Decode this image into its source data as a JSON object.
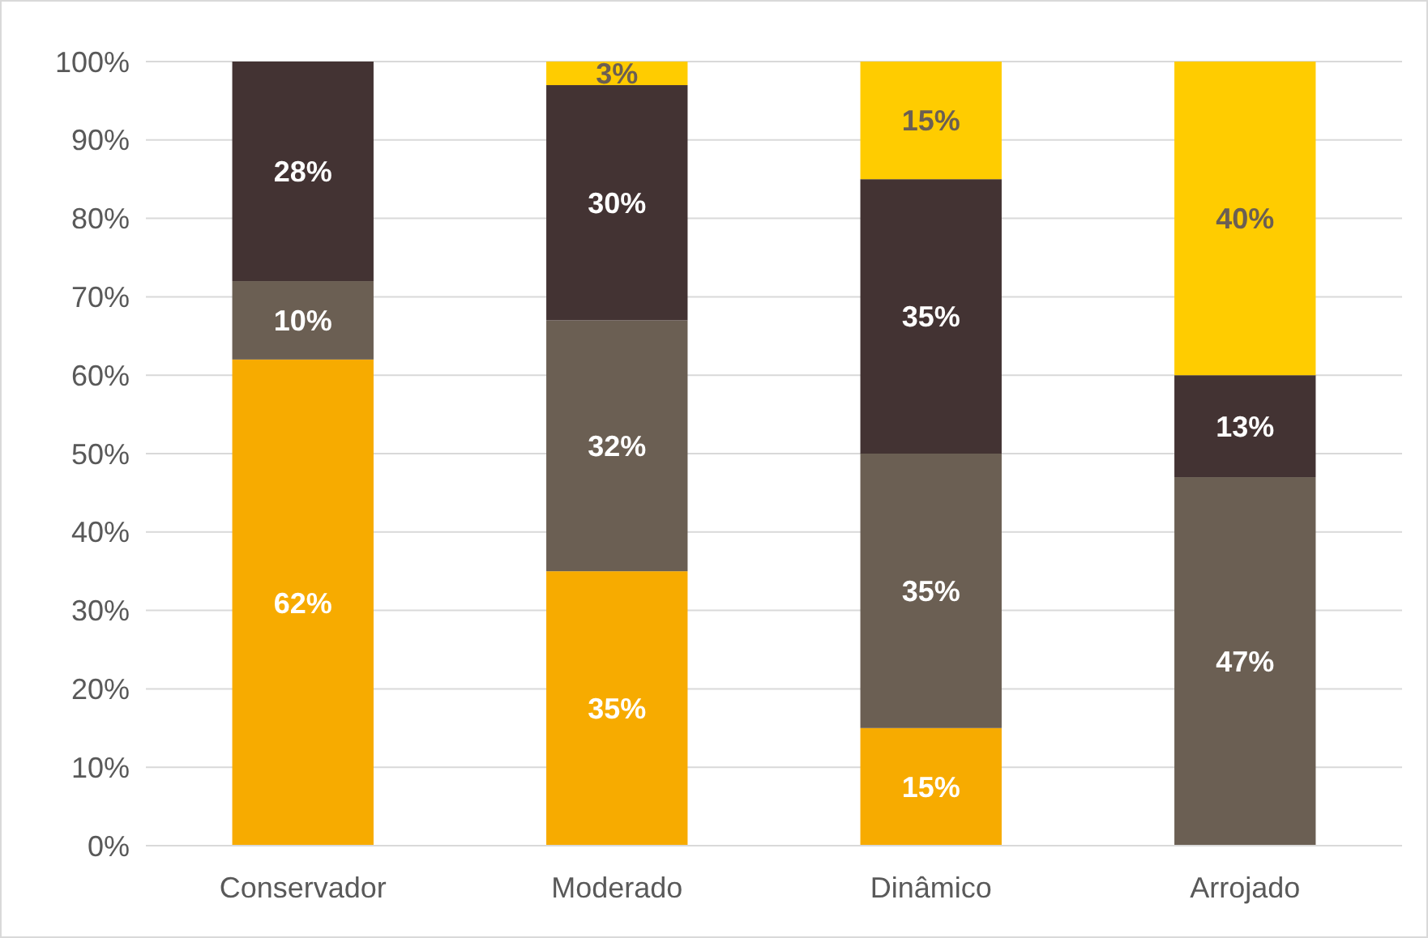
{
  "chart_data": {
    "type": "bar",
    "stacked": true,
    "categories": [
      "Conservador",
      "Moderado",
      "Dinâmico",
      "Arrojado"
    ],
    "series": [
      {
        "color": "#f7ab00",
        "values": [
          62,
          35,
          15,
          null
        ],
        "value_labels": [
          "62%",
          "35%",
          "15%",
          null
        ]
      },
      {
        "color": "#6b5f53",
        "values": [
          10,
          32,
          35,
          47
        ],
        "value_labels": [
          "10%",
          "32%",
          "35%",
          "47%"
        ]
      },
      {
        "color": "#433333",
        "values": [
          28,
          30,
          35,
          13
        ],
        "value_labels": [
          "28%",
          "30%",
          "35%",
          "13%"
        ]
      },
      {
        "color": "#ffcc00",
        "values": [
          null,
          3,
          15,
          40
        ],
        "value_labels": [
          null,
          "3%",
          "15%",
          "40%"
        ]
      }
    ],
    "ylim": [
      0,
      100
    ],
    "yticks": [
      {
        "value": 0,
        "label": "0%"
      },
      {
        "value": 10,
        "label": "10%"
      },
      {
        "value": 20,
        "label": "20%"
      },
      {
        "value": 30,
        "label": "30%"
      },
      {
        "value": 40,
        "label": "40%"
      },
      {
        "value": 50,
        "label": "50%"
      },
      {
        "value": 60,
        "label": "60%"
      },
      {
        "value": 70,
        "label": "70%"
      },
      {
        "value": 80,
        "label": "80%"
      },
      {
        "value": 90,
        "label": "90%"
      },
      {
        "value": 100,
        "label": "100%"
      }
    ],
    "grid": "y"
  }
}
